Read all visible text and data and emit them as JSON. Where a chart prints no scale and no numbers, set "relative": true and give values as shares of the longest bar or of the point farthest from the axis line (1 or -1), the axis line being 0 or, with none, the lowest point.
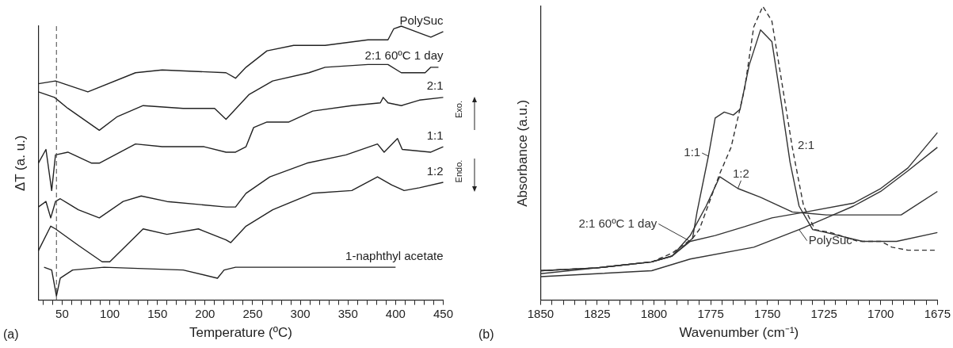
{
  "chart_data": [
    {
      "type": "line",
      "title": "(a)",
      "xlabel": "Temperature (ºC)",
      "ylabel": "ΔT (a. u.)",
      "relative": true,
      "xlim": [
        25,
        450
      ],
      "xticks": [
        {
          "value": 30,
          "label": null
        },
        {
          "value": 40,
          "label": null
        },
        50,
        {
          "value": 60,
          "label": null
        },
        {
          "value": 70,
          "label": null
        },
        {
          "value": 80,
          "label": null
        },
        {
          "value": 90,
          "label": null
        },
        100,
        {
          "value": 110,
          "label": null
        },
        {
          "value": 120,
          "label": null
        },
        {
          "value": 130,
          "label": null
        },
        {
          "value": 140,
          "label": null
        },
        150,
        {
          "value": 160,
          "label": null
        },
        {
          "value": 170,
          "label": null
        },
        {
          "value": 180,
          "label": null
        },
        {
          "value": 190,
          "label": null
        },
        200,
        {
          "value": 210,
          "label": null
        },
        {
          "value": 220,
          "label": null
        },
        {
          "value": 230,
          "label": null
        },
        {
          "value": 240,
          "label": null
        },
        250,
        {
          "value": 260,
          "label": null
        },
        {
          "value": 270,
          "label": null
        },
        {
          "value": 280,
          "label": null
        },
        {
          "value": 290,
          "label": null
        },
        300,
        {
          "value": 310,
          "label": null
        },
        {
          "value": 320,
          "label": null
        },
        {
          "value": 330,
          "label": null
        },
        {
          "value": 340,
          "label": null
        },
        350,
        {
          "value": 360,
          "label": null
        },
        {
          "value": 370,
          "label": null
        },
        {
          "value": 380,
          "label": null
        },
        {
          "value": 390,
          "label": null
        },
        400,
        {
          "value": 410,
          "label": null
        },
        {
          "value": 420,
          "label": null
        },
        {
          "value": 430,
          "label": null
        },
        {
          "value": 440,
          "label": null
        },
        450
      ],
      "ref_lines": [
        {
          "axis": "x",
          "value": 44,
          "line_style": "dashed",
          "color": "#444444"
        }
      ],
      "annotations": [
        "Exo.",
        "Endo."
      ],
      "series": [
        {
          "name": "PolySuc",
          "color": "#222222",
          "x": [
            25,
            43,
            77,
            127,
            155,
            222,
            232,
            243,
            265,
            293,
            326,
            371,
            392,
            398,
            406,
            429,
            437,
            450
          ],
          "values": [
            0.79,
            0.8,
            0.76,
            0.83,
            0.84,
            0.83,
            0.81,
            0.85,
            0.91,
            0.93,
            0.93,
            0.95,
            0.95,
            0.99,
            1.0,
            0.97,
            0.96,
            0.98
          ]
        },
        {
          "name": "2:1 60ºC 1 day",
          "color": "#222222",
          "x": [
            25,
            42,
            56,
            89,
            108,
            135,
            177,
            210,
            222,
            246,
            271,
            309,
            326,
            371,
            392,
            406,
            431,
            437,
            445
          ],
          "values": [
            0.76,
            0.74,
            0.7,
            0.62,
            0.67,
            0.71,
            0.7,
            0.7,
            0.66,
            0.75,
            0.8,
            0.83,
            0.85,
            0.86,
            0.86,
            0.83,
            0.83,
            0.85,
            0.85
          ]
        },
        {
          "name": "2:1",
          "color": "#222222",
          "x": [
            25,
            33,
            39,
            43,
            56,
            81,
            89,
            127,
            155,
            199,
            222,
            232,
            243,
            251,
            265,
            288,
            313,
            354,
            384,
            387,
            392,
            406,
            425,
            450
          ],
          "values": [
            0.5,
            0.55,
            0.4,
            0.53,
            0.54,
            0.5,
            0.5,
            0.57,
            0.56,
            0.56,
            0.54,
            0.54,
            0.56,
            0.63,
            0.65,
            0.65,
            0.69,
            0.71,
            0.72,
            0.74,
            0.72,
            0.71,
            0.73,
            0.74
          ]
        },
        {
          "name": "1:1",
          "color": "#222222",
          "x": [
            25,
            33,
            38,
            43,
            48,
            67,
            89,
            114,
            133,
            160,
            222,
            232,
            243,
            268,
            307,
            348,
            381,
            388,
            402,
            407,
            437,
            450
          ],
          "values": [
            0.34,
            0.36,
            0.3,
            0.36,
            0.37,
            0.33,
            0.3,
            0.36,
            0.38,
            0.36,
            0.34,
            0.34,
            0.39,
            0.45,
            0.5,
            0.53,
            0.57,
            0.54,
            0.59,
            0.55,
            0.54,
            0.56
          ]
        },
        {
          "name": "1:2",
          "color": "#222222",
          "x": [
            25,
            38,
            43,
            67,
            92,
            100,
            135,
            160,
            193,
            222,
            227,
            243,
            271,
            313,
            354,
            381,
            396,
            409,
            425,
            450
          ],
          "values": [
            0.18,
            0.27,
            0.26,
            0.2,
            0.14,
            0.14,
            0.26,
            0.24,
            0.26,
            0.22,
            0.21,
            0.27,
            0.33,
            0.39,
            0.4,
            0.45,
            0.42,
            0.4,
            0.41,
            0.43
          ]
        },
        {
          "name": "1-naphthyl acetate",
          "color": "#222222",
          "x": [
            31,
            39,
            44,
            48,
            61,
            94,
            177,
            213,
            220,
            232,
            243,
            400
          ],
          "values": [
            0.12,
            0.11,
            0.015,
            0.08,
            0.11,
            0.12,
            0.11,
            0.08,
            0.11,
            0.12,
            0.12,
            0.12
          ]
        }
      ]
    },
    {
      "type": "line",
      "title": "(b)",
      "xlabel": "Wavenumber (cm⁻¹)",
      "ylabel": "Absorbance (a.u.)",
      "relative": true,
      "xlim": [
        1850,
        1675
      ],
      "xticks": [
        1850,
        {
          "value": 1845,
          "label": null
        },
        {
          "value": 1840,
          "label": null
        },
        {
          "value": 1835,
          "label": null
        },
        {
          "value": 1830,
          "label": null
        },
        1825,
        {
          "value": 1820,
          "label": null
        },
        {
          "value": 1815,
          "label": null
        },
        {
          "value": 1810,
          "label": null
        },
        {
          "value": 1805,
          "label": null
        },
        1800,
        {
          "value": 1795,
          "label": null
        },
        {
          "value": 1790,
          "label": null
        },
        {
          "value": 1785,
          "label": null
        },
        {
          "value": 1780,
          "label": null
        },
        1775,
        {
          "value": 1770,
          "label": null
        },
        {
          "value": 1765,
          "label": null
        },
        {
          "value": 1760,
          "label": null
        },
        {
          "value": 1755,
          "label": null
        },
        1750,
        {
          "value": 1745,
          "label": null
        },
        {
          "value": 1740,
          "label": null
        },
        {
          "value": 1735,
          "label": null
        },
        {
          "value": 1730,
          "label": null
        },
        1725,
        {
          "value": 1720,
          "label": null
        },
        {
          "value": 1715,
          "label": null
        },
        {
          "value": 1710,
          "label": null
        },
        {
          "value": 1705,
          "label": null
        },
        1700,
        {
          "value": 1695,
          "label": null
        },
        {
          "value": 1690,
          "label": null
        },
        {
          "value": 1685,
          "label": null
        },
        {
          "value": 1680,
          "label": null
        },
        1675
      ],
      "series": [
        {
          "name": "2:1",
          "color": "#333333",
          "line_style": "dashed",
          "x": [
            1850,
            1825,
            1801,
            1792,
            1783,
            1780,
            1771,
            1766,
            1760,
            1756,
            1752,
            1748,
            1744,
            1739,
            1734,
            1729,
            1722,
            1710,
            1700,
            1695,
            1688,
            1675
          ],
          "values": [
            0.1,
            0.11,
            0.13,
            0.16,
            0.21,
            0.24,
            0.43,
            0.52,
            0.72,
            0.93,
            1.0,
            0.95,
            0.76,
            0.52,
            0.32,
            0.24,
            0.23,
            0.2,
            0.2,
            0.18,
            0.17,
            0.17
          ]
        },
        {
          "name": "1:1",
          "color": "#333333",
          "x": [
            1850,
            1825,
            1801,
            1792,
            1783,
            1781,
            1776,
            1773,
            1769,
            1765,
            1762,
            1758,
            1753,
            1748,
            1744,
            1740,
            1736,
            1730,
            1724,
            1708,
            1693,
            1675
          ],
          "values": [
            0.09,
            0.11,
            0.13,
            0.15,
            0.21,
            0.3,
            0.49,
            0.62,
            0.64,
            0.63,
            0.65,
            0.8,
            0.92,
            0.88,
            0.68,
            0.47,
            0.32,
            0.24,
            0.23,
            0.2,
            0.2,
            0.23
          ]
        },
        {
          "name": "1:2",
          "color": "#333333",
          "x": [
            1850,
            1825,
            1801,
            1792,
            1784,
            1777,
            1771,
            1763,
            1753,
            1739,
            1724,
            1710,
            1691,
            1675
          ],
          "values": [
            0.1,
            0.11,
            0.13,
            0.15,
            0.22,
            0.32,
            0.42,
            0.38,
            0.35,
            0.3,
            0.29,
            0.29,
            0.29,
            0.37
          ]
        },
        {
          "name": "2:1 60ºC 1 day",
          "color": "#333333",
          "x": [
            1850,
            1825,
            1801,
            1792,
            1784,
            1773,
            1760,
            1748,
            1733,
            1712,
            1700,
            1688,
            1675
          ],
          "values": [
            0.1,
            0.11,
            0.13,
            0.15,
            0.2,
            0.22,
            0.25,
            0.28,
            0.3,
            0.33,
            0.38,
            0.45,
            0.57
          ]
        },
        {
          "name": "PolySuc",
          "color": "#333333",
          "x": [
            1850,
            1825,
            1801,
            1784,
            1756,
            1736,
            1724,
            1712,
            1700,
            1688,
            1675
          ],
          "values": [
            0.08,
            0.09,
            0.1,
            0.14,
            0.18,
            0.24,
            0.28,
            0.32,
            0.37,
            0.44,
            0.52
          ]
        }
      ]
    }
  ]
}
